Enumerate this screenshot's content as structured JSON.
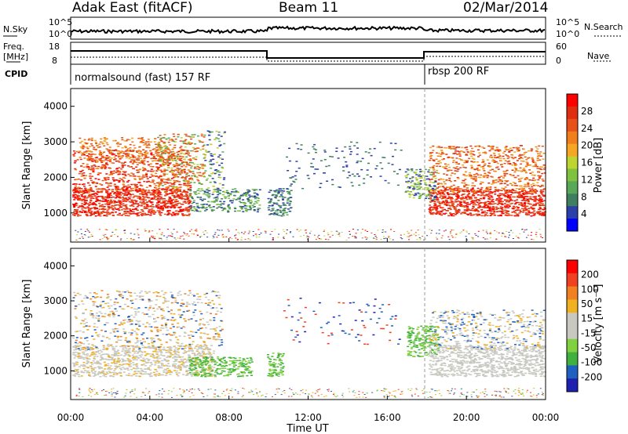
{
  "header": {
    "station": "Adak East (fitACF)",
    "beam": "Beam 11",
    "date": "02/Mar/2014"
  },
  "top_panel": {
    "left_label": "N.Sky",
    "right_label": "N.Search",
    "left_ticks": [
      "10^5",
      "10^0"
    ],
    "right_ticks": [
      "10^5",
      "10^0"
    ]
  },
  "freq_panel": {
    "left_label": "Freq.",
    "left_unit": "[MHz]",
    "right_label": "Nave",
    "left_ticks": [
      "18",
      "8"
    ],
    "right_ticks": [
      "60",
      "0"
    ]
  },
  "cpid_panel": {
    "label": "CPID",
    "program_1": "normalsound (fast) 157 RF",
    "program_2": "rbsp 200 RF"
  },
  "colors": {
    "power_scale": [
      "#0000ff",
      "#2c3ea8",
      "#3f7f5f",
      "#58a858",
      "#7fc240",
      "#bed431",
      "#f5a623",
      "#f07e1a",
      "#e8501a",
      "#e02e10",
      "#ff0000"
    ],
    "velocity_scale": [
      "#ff0000",
      "#f04020",
      "#f08020",
      "#f0b020",
      "#c8c8c0",
      "#c8c8c0",
      "#80d040",
      "#40b040",
      "#2060c0",
      "#2020b0"
    ]
  },
  "chart_data": [
    {
      "type": "heatmap",
      "title": "",
      "xlabel": "Time UT",
      "ylabel": "Slant Range [km]",
      "x_ticks": [
        "00:00",
        "04:00",
        "08:00",
        "12:00",
        "16:00",
        "20:00",
        "00:00"
      ],
      "y_ticks": [
        "1000",
        "2000",
        "3000",
        "4000"
      ],
      "colorbar_label": "Power [dB]",
      "colorbar_ticks": [
        "4",
        "8",
        "12",
        "16",
        "20",
        "24",
        "28"
      ]
    },
    {
      "type": "heatmap",
      "title": "",
      "xlabel": "Time UT",
      "ylabel": "Slant Range [km]",
      "x_ticks": [
        "00:00",
        "04:00",
        "08:00",
        "12:00",
        "16:00",
        "20:00",
        "00:00"
      ],
      "y_ticks": [
        "1000",
        "2000",
        "3000",
        "4000"
      ],
      "colorbar_label": "Velocity [m s⁻¹]",
      "colorbar_ticks": [
        "200",
        "100",
        "50",
        "15",
        "-15",
        "-50",
        "-100",
        "-200"
      ]
    }
  ]
}
